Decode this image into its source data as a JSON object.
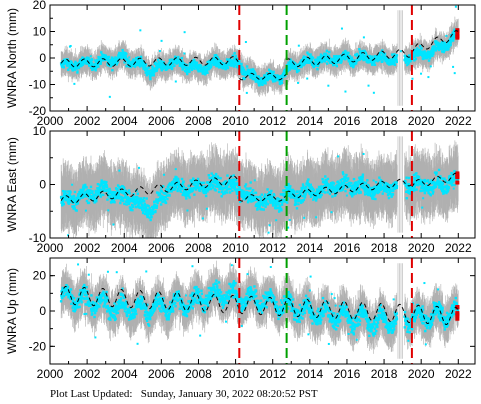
{
  "footer": {
    "label": "Plot Last Updated:",
    "timestamp": "Sunday, January 30, 2022 08:20:52 PST"
  },
  "chart_data": [
    {
      "type": "scatter",
      "ylabel": "WNRA North (mm)",
      "ylim": [
        -20,
        20
      ],
      "yticks": [
        -20,
        -10,
        0,
        10,
        20
      ],
      "xlim": [
        2000,
        2022.9
      ],
      "xticks": [
        2000,
        2002,
        2004,
        2006,
        2008,
        2010,
        2012,
        2014,
        2016,
        2018,
        2020,
        2022
      ],
      "xtick_labels_shown": true,
      "event_lines": [
        {
          "x": 2010.2,
          "color": "#e00000"
        },
        {
          "x": 2012.75,
          "color": "#00a000"
        },
        {
          "x": 2019.5,
          "color": "#e00000"
        }
      ],
      "model_segments": [
        {
          "x0": 2000.6,
          "x1": 2010.2,
          "baseline": [
            -2,
            -1
          ],
          "amp": 1.5
        },
        {
          "x0": 2010.2,
          "x1": 2012.75,
          "baseline": [
            -7,
            -7
          ],
          "amp": 1.2
        },
        {
          "x0": 2012.75,
          "x1": 2019.5,
          "baseline": [
            -2,
            2
          ],
          "amp": 1.6
        },
        {
          "x0": 2019.5,
          "x1": 2022.0,
          "baseline": [
            3,
            9
          ],
          "amp": 1.6
        }
      ],
      "observed_trend": [
        [
          2000.6,
          -3
        ],
        [
          2002.0,
          -2
        ],
        [
          2003.0,
          -1
        ],
        [
          2004.0,
          0
        ],
        [
          2005.0,
          -3
        ],
        [
          2005.5,
          -5
        ],
        [
          2006.5,
          -2
        ],
        [
          2007.5,
          -3
        ],
        [
          2008.0,
          -4
        ],
        [
          2009.0,
          -2
        ],
        [
          2010.2,
          -2
        ],
        [
          2010.6,
          -6
        ],
        [
          2011.5,
          -8
        ],
        [
          2012.5,
          -7
        ],
        [
          2013.0,
          -3
        ],
        [
          2014.0,
          -1
        ],
        [
          2016.0,
          0
        ],
        [
          2017.5,
          0
        ],
        [
          2019.0,
          -1
        ],
        [
          2019.5,
          1
        ],
        [
          2020.5,
          2
        ],
        [
          2021.5,
          6
        ],
        [
          2022.0,
          9
        ]
      ],
      "error_bar": 5,
      "noise": 2.5,
      "gap": [
        2018.7,
        2019.1
      ]
    },
    {
      "type": "scatter",
      "ylabel": "WNRA East (mm)",
      "ylim": [
        -10,
        10
      ],
      "yticks": [
        -10,
        0,
        10
      ],
      "xlim": [
        2000,
        2022.9
      ],
      "xticks": [
        2000,
        2002,
        2004,
        2006,
        2008,
        2010,
        2012,
        2014,
        2016,
        2018,
        2020,
        2022
      ],
      "xtick_labels_shown": true,
      "event_lines": [
        {
          "x": 2010.2,
          "color": "#e00000"
        },
        {
          "x": 2012.75,
          "color": "#00a000"
        },
        {
          "x": 2019.5,
          "color": "#e00000"
        }
      ],
      "model_segments": [
        {
          "x0": 2000.6,
          "x1": 2010.2,
          "baseline": [
            -3,
            1
          ],
          "amp": 0.8
        },
        {
          "x0": 2010.2,
          "x1": 2012.75,
          "baseline": [
            -2.5,
            -2.5
          ],
          "amp": 0.6
        },
        {
          "x0": 2012.75,
          "x1": 2019.5,
          "baseline": [
            -2,
            0.5
          ],
          "amp": 0.7
        },
        {
          "x0": 2019.5,
          "x1": 2022.0,
          "baseline": [
            0,
            1.5
          ],
          "amp": 0.7
        }
      ],
      "observed_trend": [
        [
          2000.6,
          -3
        ],
        [
          2002.0,
          -2
        ],
        [
          2003.0,
          -1
        ],
        [
          2004.5,
          -3
        ],
        [
          2005.5,
          -5
        ],
        [
          2006.5,
          0
        ],
        [
          2007.5,
          -1
        ],
        [
          2008.5,
          0
        ],
        [
          2009.5,
          0
        ],
        [
          2010.2,
          -1
        ],
        [
          2011.0,
          -3
        ],
        [
          2012.0,
          -3
        ],
        [
          2013.0,
          -2
        ],
        [
          2014.5,
          -1
        ],
        [
          2016.0,
          0
        ],
        [
          2017.5,
          -1
        ],
        [
          2019.0,
          0
        ],
        [
          2020.0,
          0
        ],
        [
          2021.0,
          0
        ],
        [
          2022.0,
          1
        ]
      ],
      "error_bar": 6,
      "noise": 2.0,
      "gap": [
        2018.7,
        2019.1
      ]
    },
    {
      "type": "scatter",
      "ylabel": "WNRA Up (mm)",
      "ylim": [
        -30,
        30
      ],
      "yticks": [
        -20,
        0,
        20
      ],
      "xlim": [
        2000,
        2022.9
      ],
      "xticks": [
        2000,
        2002,
        2004,
        2006,
        2008,
        2010,
        2012,
        2014,
        2016,
        2018,
        2020,
        2022
      ],
      "xtick_labels_shown": true,
      "event_lines": [
        {
          "x": 2010.2,
          "color": "#e00000"
        },
        {
          "x": 2012.75,
          "color": "#00a000"
        },
        {
          "x": 2019.5,
          "color": "#e00000"
        }
      ],
      "model_segments": [
        {
          "x0": 2000.6,
          "x1": 2022.0,
          "baseline": [
            9,
            -3
          ],
          "amp": 5
        }
      ],
      "observed_trend": [
        [
          2000.6,
          8
        ],
        [
          2002.0,
          6
        ],
        [
          2003.0,
          3
        ],
        [
          2004.5,
          1
        ],
        [
          2006.0,
          2
        ],
        [
          2008.0,
          6
        ],
        [
          2009.0,
          10
        ],
        [
          2010.2,
          8
        ],
        [
          2011.5,
          6
        ],
        [
          2013.0,
          2
        ],
        [
          2014.5,
          -2
        ],
        [
          2016.0,
          -3
        ],
        [
          2017.5,
          -6
        ],
        [
          2019.0,
          -5
        ],
        [
          2020.5,
          -3
        ],
        [
          2022.0,
          -1
        ]
      ],
      "error_bar": 12,
      "noise": 6,
      "gap": [
        2018.7,
        2019.1
      ]
    }
  ],
  "colors": {
    "obs": "#00e5ff",
    "err": "#b0b0b0",
    "model": "#000000",
    "latest": "#e00000"
  }
}
